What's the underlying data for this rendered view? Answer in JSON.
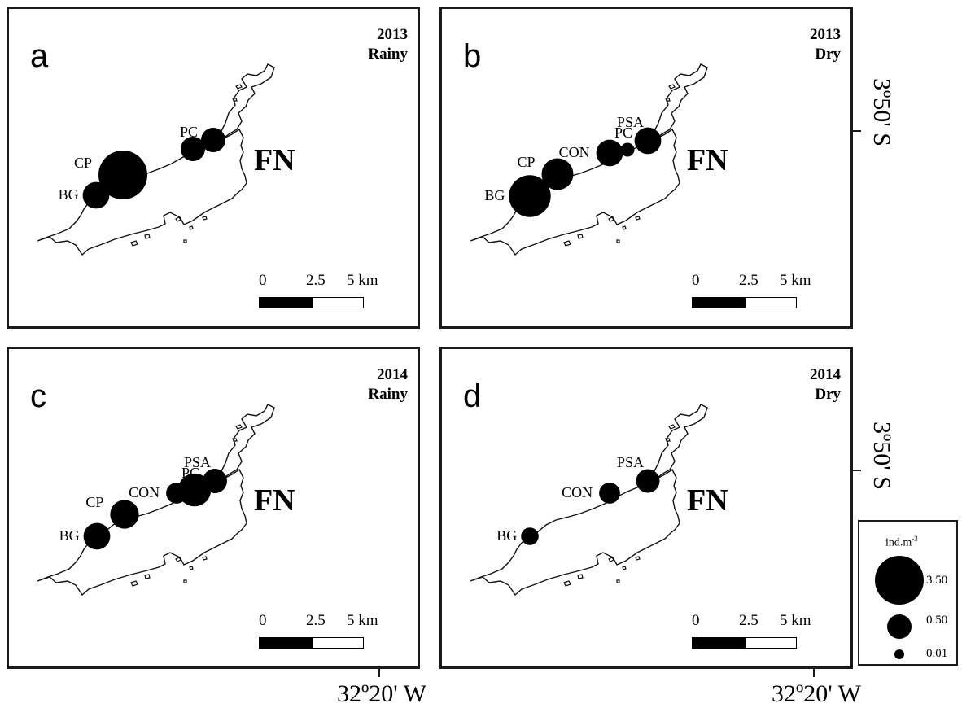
{
  "island_label": "FN",
  "scale_bar": {
    "labels": [
      "0",
      "2.5",
      "5 km"
    ]
  },
  "longitude_label": "32º20' W",
  "latitude_label": "3º50' S",
  "legend": {
    "title": "ind.m",
    "title_exponent": "-3",
    "entries": [
      {
        "label": "3.50",
        "value": 3.5
      },
      {
        "label": "0.50",
        "value": 0.5
      },
      {
        "label": "0.01",
        "value": 0.01
      }
    ]
  },
  "panels": [
    {
      "letter": "a",
      "year": "2013",
      "season": "Rainy",
      "sites": [
        {
          "name": "CP",
          "density": 3.5
        },
        {
          "name": "BG",
          "density": 0.6
        },
        {
          "name": "PC",
          "density": 0.5
        },
        {
          "name": "PSA",
          "density": 0.5,
          "label_hidden": true
        }
      ]
    },
    {
      "letter": "b",
      "year": "2013",
      "season": "Dry",
      "sites": [
        {
          "name": "BG",
          "density": 2.0
        },
        {
          "name": "CP",
          "density": 0.9
        },
        {
          "name": "CON",
          "density": 0.6
        },
        {
          "name": "PC",
          "density": 0.03
        },
        {
          "name": "PSA",
          "density": 0.6
        }
      ]
    },
    {
      "letter": "c",
      "year": "2014",
      "season": "Rainy",
      "sites": [
        {
          "name": "BG",
          "density": 0.6
        },
        {
          "name": "CP",
          "density": 0.7
        },
        {
          "name": "CON",
          "density": 0.2
        },
        {
          "name": "PC",
          "density": 1.0
        },
        {
          "name": "PSA",
          "density": 0.5
        }
      ]
    },
    {
      "letter": "d",
      "year": "2014",
      "season": "Dry",
      "sites": [
        {
          "name": "BG",
          "density": 0.08
        },
        {
          "name": "CON",
          "density": 0.2
        },
        {
          "name": "PSA",
          "density": 0.4
        }
      ]
    }
  ]
}
